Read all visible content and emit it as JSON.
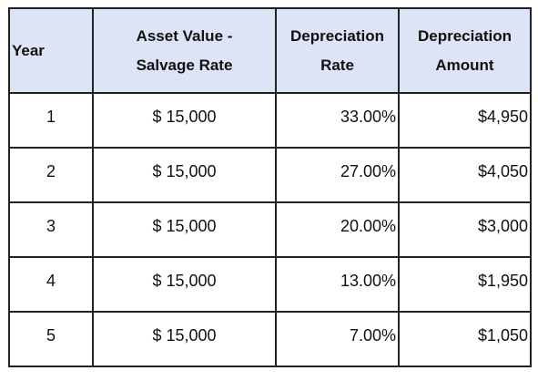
{
  "table": {
    "header": [
      [
        "Year"
      ],
      [
        "Asset Value -",
        "Salvage Rate"
      ],
      [
        "Depreciation",
        "Rate"
      ],
      [
        "Depreciation",
        "Amount"
      ]
    ],
    "rows": [
      [
        "1",
        "$ 15,000",
        "33.00%",
        "$4,950"
      ],
      [
        "2",
        "$ 15,000",
        "27.00%",
        "$4,050"
      ],
      [
        "3",
        "$ 15,000",
        "20.00%",
        "$3,000"
      ],
      [
        "4",
        "$ 15,000",
        "13.00%",
        "$1,950"
      ],
      [
        "5",
        "$ 15,000",
        "7.00%",
        "$1,050"
      ]
    ]
  }
}
